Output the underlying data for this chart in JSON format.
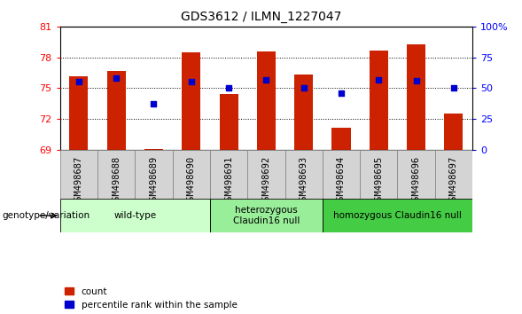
{
  "title": "GDS3612 / ILMN_1227047",
  "samples": [
    "GSM498687",
    "GSM498688",
    "GSM498689",
    "GSM498690",
    "GSM498691",
    "GSM498692",
    "GSM498693",
    "GSM498694",
    "GSM498695",
    "GSM498696",
    "GSM498697"
  ],
  "bar_values": [
    76.2,
    76.7,
    69.1,
    78.5,
    74.4,
    78.6,
    76.3,
    71.1,
    78.7,
    79.3,
    72.5
  ],
  "percentile_values": [
    55,
    58,
    37,
    55,
    50,
    57,
    50,
    46,
    57,
    56,
    50
  ],
  "ylim": [
    69,
    81
  ],
  "yticks": [
    69,
    72,
    75,
    78,
    81
  ],
  "y2lim": [
    0,
    100
  ],
  "y2ticks": [
    0,
    25,
    50,
    75,
    100
  ],
  "bar_color": "#cc2200",
  "dot_color": "#0000cc",
  "bar_width": 0.5,
  "bg_color": "#ffffff",
  "plot_bg": "#ffffff",
  "groups": [
    {
      "label": "wild-type",
      "start": 0,
      "end": 3,
      "color": "#ccffcc"
    },
    {
      "label": "heterozygous\nClaudin16 null",
      "start": 4,
      "end": 6,
      "color": "#99ee99"
    },
    {
      "label": "homozygous Claudin16 null",
      "start": 7,
      "end": 10,
      "color": "#44cc44"
    }
  ],
  "left_label": "genotype/variation",
  "legend_count_label": "count",
  "legend_pct_label": "percentile rank within the sample",
  "title_fontsize": 10,
  "tick_fontsize": 8,
  "label_fontsize": 7.5
}
